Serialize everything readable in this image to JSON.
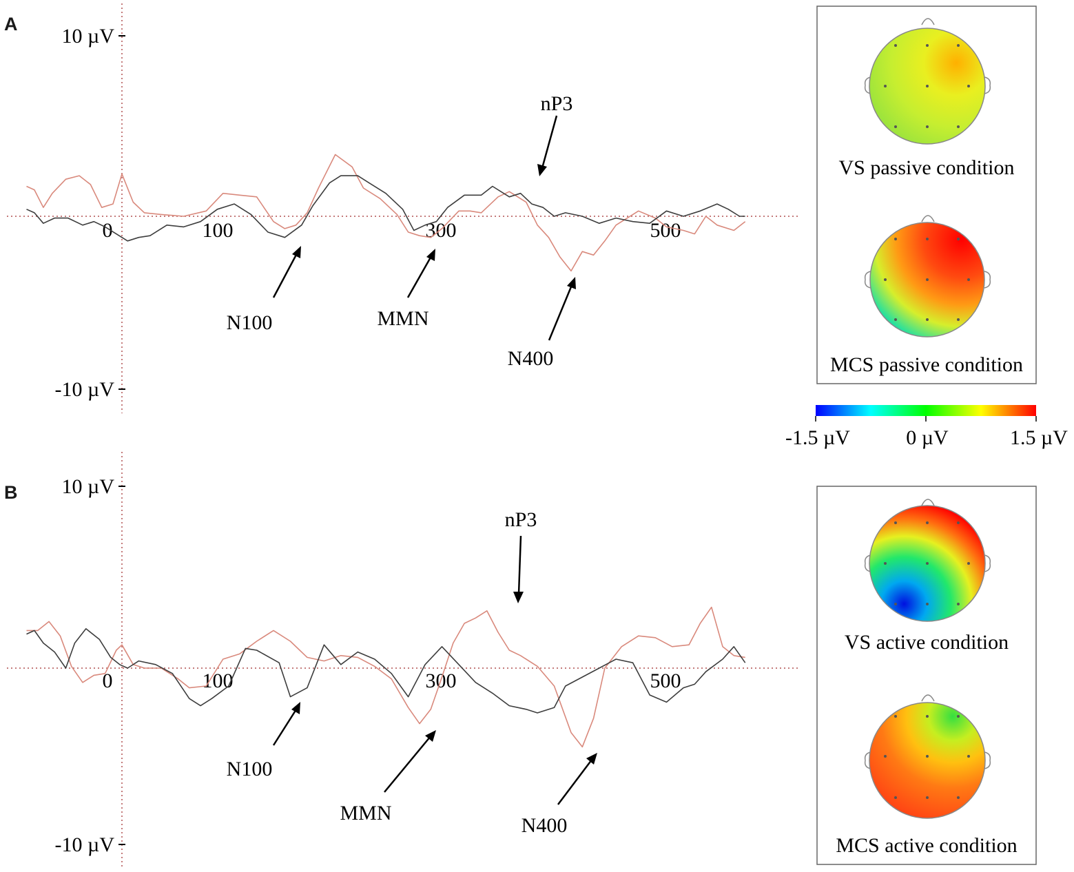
{
  "chart_data": [
    {
      "type": "line",
      "panel_label": "A",
      "y_ticks": [
        "10 µV",
        "-10 µV"
      ],
      "y_tick_values": [
        10,
        -10
      ],
      "x_ticks": [
        "0",
        "100",
        "300",
        "500"
      ],
      "x_tick_values": [
        0,
        100,
        300,
        500
      ],
      "xlim": [
        -85,
        555
      ],
      "ylim": [
        -11.5,
        11.5
      ],
      "series": [
        {
          "color": "#d9897c",
          "x": [
            -85,
            -78,
            -70,
            -62,
            -50,
            -38,
            -28,
            -18,
            -8,
            0,
            10,
            20,
            35,
            55,
            75,
            90,
            105,
            120,
            135,
            145,
            155,
            165,
            175,
            190,
            205,
            215,
            230,
            245,
            255,
            265,
            275,
            285,
            300,
            310,
            320,
            335,
            345,
            360,
            370,
            380,
            390,
            400,
            410,
            420,
            430,
            440,
            450,
            460,
            475,
            485,
            500,
            510,
            520,
            530,
            545,
            555
          ],
          "y": [
            1.7,
            1.5,
            0.5,
            1.3,
            2.1,
            2.3,
            1.8,
            0.5,
            0.7,
            2.4,
            0.8,
            0.2,
            0.1,
            0.0,
            0.3,
            1.3,
            1.2,
            1.1,
            -0.3,
            -0.7,
            -0.5,
            0.2,
            1.6,
            3.5,
            2.8,
            1.6,
            1.0,
            0.1,
            -0.9,
            -1.1,
            -1.2,
            -0.7,
            0.3,
            0.3,
            0.2,
            1.1,
            1.4,
            0.8,
            -0.5,
            -1.2,
            -2.3,
            -3.1,
            -2.0,
            -2.2,
            -1.4,
            -0.5,
            -0.1,
            0.3,
            -0.1,
            -0.6,
            -0.8,
            -1.0,
            0.0,
            -0.5,
            -0.8,
            -0.3
          ]
        },
        {
          "color": "#3d3d3d",
          "x": [
            -85,
            -78,
            -70,
            -60,
            -48,
            -35,
            -25,
            -15,
            -5,
            5,
            15,
            25,
            40,
            55,
            70,
            85,
            100,
            115,
            130,
            145,
            160,
            170,
            185,
            195,
            210,
            220,
            235,
            250,
            260,
            270,
            280,
            290,
            305,
            320,
            330,
            345,
            355,
            365,
            375,
            385,
            395,
            410,
            425,
            440,
            455,
            470,
            485,
            500,
            515,
            530,
            540,
            550,
            555
          ],
          "y": [
            0.4,
            0.2,
            -0.4,
            -0.1,
            -0.1,
            -0.5,
            -0.3,
            -0.6,
            -1.0,
            -1.4,
            -1.2,
            -1.1,
            -0.5,
            -0.6,
            -0.3,
            0.4,
            0.7,
            0.1,
            -0.9,
            -1.2,
            -0.5,
            0.6,
            1.9,
            2.3,
            2.3,
            1.9,
            1.3,
            0.4,
            -0.8,
            -0.5,
            -0.3,
            0.5,
            1.2,
            1.2,
            1.7,
            1.1,
            1.3,
            0.7,
            0.5,
            0.0,
            0.2,
            0.0,
            -0.4,
            -0.1,
            -0.3,
            -0.4,
            0.3,
            0.0,
            0.3,
            0.7,
            0.4,
            0.0,
            0.0
          ]
        }
      ],
      "annotations": [
        {
          "label": "nP3",
          "x": 345,
          "y": 2.1
        },
        {
          "label": "N100",
          "x": 140,
          "y": -1.3
        },
        {
          "label": "MMN",
          "x": 290,
          "y": -1.7
        },
        {
          "label": "N400",
          "x": 400,
          "y": -3.4
        }
      ]
    },
    {
      "type": "line",
      "panel_label": "B",
      "y_ticks": [
        "10 µV",
        "-10 µV"
      ],
      "y_tick_values": [
        10,
        -10
      ],
      "x_ticks": [
        "0",
        "100",
        "300",
        "500"
      ],
      "x_tick_values": [
        0,
        100,
        300,
        500
      ],
      "xlim": [
        -85,
        555
      ],
      "ylim": [
        -11.5,
        11.5
      ],
      "series": [
        {
          "color": "#d9897c",
          "x": [
            -85,
            -75,
            -65,
            -55,
            -45,
            -35,
            -25,
            -15,
            -5,
            0,
            10,
            20,
            35,
            50,
            60,
            75,
            90,
            105,
            120,
            135,
            150,
            165,
            180,
            195,
            210,
            225,
            240,
            255,
            265,
            275,
            285,
            295,
            305,
            315,
            325,
            335,
            345,
            355,
            370,
            385,
            400,
            410,
            420,
            430,
            445,
            460,
            475,
            490,
            505,
            515,
            525,
            535,
            545,
            555
          ],
          "y": [
            2.1,
            2.1,
            2.6,
            1.8,
            0.1,
            -0.8,
            -0.4,
            -0.3,
            1.0,
            1.3,
            0.2,
            0.0,
            0.0,
            -0.6,
            -1.1,
            -1.0,
            0.5,
            0.8,
            1.5,
            2.1,
            1.5,
            0.6,
            0.4,
            0.7,
            0.6,
            0.1,
            -0.6,
            -2.2,
            -3.1,
            -2.3,
            -0.5,
            1.4,
            2.5,
            2.8,
            3.2,
            2.0,
            1.0,
            0.7,
            0.1,
            -1.0,
            -3.6,
            -4.4,
            -2.8,
            0.0,
            1.2,
            1.8,
            1.7,
            1.2,
            1.3,
            2.5,
            3.4,
            1.2,
            0.7,
            0.6
          ]
        },
        {
          "color": "#3d3d3d",
          "x": [
            -85,
            -78,
            -70,
            -60,
            -50,
            -42,
            -32,
            -20,
            -10,
            -2,
            5,
            15,
            30,
            45,
            60,
            70,
            80,
            95,
            110,
            120,
            140,
            150,
            165,
            180,
            195,
            210,
            225,
            240,
            255,
            270,
            285,
            300,
            315,
            330,
            345,
            360,
            370,
            385,
            395,
            410,
            425,
            440,
            455,
            470,
            485,
            500,
            510,
            520,
            535,
            545,
            555
          ],
          "y": [
            1.9,
            2.1,
            1.4,
            0.9,
            0.0,
            1.4,
            2.2,
            1.6,
            0.6,
            0.2,
            0.0,
            0.4,
            0.2,
            -0.3,
            -1.7,
            -2.1,
            -1.7,
            -1.0,
            1.1,
            1.0,
            0.3,
            -1.6,
            -1.1,
            1.3,
            0.2,
            0.9,
            0.5,
            -0.3,
            -1.6,
            0.2,
            1.2,
            0.2,
            -0.8,
            -1.4,
            -2.1,
            -2.3,
            -2.5,
            -2.2,
            -1.0,
            -0.5,
            0.0,
            0.5,
            0.3,
            -1.5,
            -1.9,
            -1.1,
            -0.9,
            -0.2,
            0.5,
            1.2,
            0.3
          ]
        }
      ],
      "annotations": [
        {
          "label": "nP3",
          "x": 318,
          "y": 3.3
        },
        {
          "label": "N100",
          "x": 140,
          "y": -2.1
        },
        {
          "label": "MMN",
          "x": 287,
          "y": -3.2
        },
        {
          "label": "N400",
          "x": 400,
          "y": -4.6
        }
      ]
    }
  ],
  "topomaps": {
    "passive": [
      "VS passive condition",
      "MCS passive condition"
    ],
    "active": [
      "VS active condition",
      "MCS active condition"
    ]
  },
  "colorbar": {
    "labels": [
      "-1.5 µV",
      "0 µV",
      "1.5 µV"
    ],
    "range": [
      -1.5,
      1.5
    ],
    "colors": [
      "#0000ff",
      "#00ffff",
      "#00ff00",
      "#ffff00",
      "#ff0000"
    ]
  }
}
